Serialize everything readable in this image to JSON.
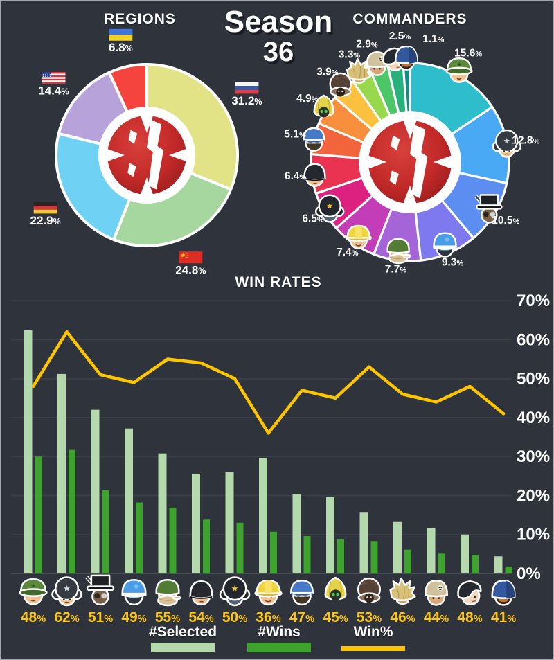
{
  "season": {
    "label": "Season",
    "number": "36"
  },
  "regions": {
    "title": "REGIONS"
  },
  "commanders": {
    "title": "COMMANDERS"
  },
  "win_rates": {
    "title": "WIN RATES"
  },
  "legend": [
    {
      "label": "#Selected",
      "color": "#b3d9ad"
    },
    {
      "label": "#Wins",
      "color": "#3da22e"
    },
    {
      "label": "Win%",
      "color": "#fdc500"
    }
  ],
  "chart_data": [
    {
      "id": "regions",
      "type": "pie",
      "title": "REGIONS",
      "center_logo": "red-army-emblem",
      "slices": [
        {
          "label": "Russia",
          "flag": "russia-flag",
          "value": 31.2,
          "color": "#e2e287"
        },
        {
          "label": "China",
          "flag": "china-flag",
          "value": 24.8,
          "color": "#a6d79f"
        },
        {
          "label": "Germany",
          "flag": "germany-flag",
          "value": 22.9,
          "color": "#6fd2f4"
        },
        {
          "label": "USA",
          "flag": "usa-flag",
          "value": 14.4,
          "color": "#b7a2da"
        },
        {
          "label": "Ukraine",
          "flag": "ukraine-flag",
          "value": 6.8,
          "color": "#f4443d"
        }
      ]
    },
    {
      "id": "commanders",
      "type": "pie",
      "title": "COMMANDERS",
      "center_logo": "red-army-emblem",
      "slices": [
        {
          "label": "green-cap-commander",
          "value": 15.6,
          "color": "#2ebdca"
        },
        {
          "label": "ushanka-star-commander",
          "value": 12.8,
          "color": "#4aa9f5"
        },
        {
          "label": "top-hat-commander",
          "value": 10.5,
          "color": "#5c8df0"
        },
        {
          "label": "blue-beret-commander",
          "value": 9.3,
          "color": "#7e79ee"
        },
        {
          "label": "green-helmet-commander",
          "value": 7.7,
          "color": "#a664d9"
        },
        {
          "label": "hard-hat-commander",
          "value": 7.4,
          "color": "#c33db6"
        },
        {
          "label": "ushanka-officer-commander",
          "value": 6.5,
          "color": "#dc2180"
        },
        {
          "label": "black-cap-commander",
          "value": 6.4,
          "color": "#e93350"
        },
        {
          "label": "blue-pilot-commander",
          "value": 5.1,
          "color": "#f2643c"
        },
        {
          "label": "yellow-hood-commander",
          "value": 4.9,
          "color": "#f78f3d"
        },
        {
          "label": "fur-hat-commander",
          "value": 3.9,
          "color": "#fcc23f"
        },
        {
          "label": "blond-hair-commander",
          "value": 3.3,
          "color": "#97d84c"
        },
        {
          "label": "skull-helmet-commander",
          "value": 2.9,
          "color": "#4dc668"
        },
        {
          "label": "black-beret-commander",
          "value": 2.5,
          "color": "#27b07b"
        },
        {
          "label": "navy-helmet-commander",
          "value": 1.1,
          "color": "#108d85"
        }
      ]
    },
    {
      "id": "win_rates",
      "type": "bar+line",
      "title": "WIN RATES",
      "categories": [
        "green-cap-commander",
        "ushanka-star-commander",
        "top-hat-commander",
        "blue-beret-commander",
        "green-helmet-commander",
        "black-cap-commander",
        "ushanka-officer-commander",
        "hard-hat-commander",
        "blue-pilot-commander",
        "yellow-hood-commander",
        "fur-hat-commander",
        "blond-hair-commander",
        "skull-helmet-commander",
        "black-beret-commander",
        "navy-helmet-commander"
      ],
      "series": [
        {
          "name": "#Selected",
          "type": "bar",
          "color": "#b3d9ad",
          "values": [
            62.4,
            51.2,
            42.0,
            37.2,
            30.8,
            25.6,
            26.0,
            29.6,
            20.4,
            19.6,
            15.6,
            13.2,
            11.6,
            10.0,
            4.4
          ]
        },
        {
          "name": "#Wins",
          "type": "bar",
          "color": "#3da22e",
          "values": [
            30.0,
            31.7,
            21.4,
            18.2,
            16.9,
            13.8,
            13.0,
            10.7,
            9.6,
            8.8,
            8.3,
            6.1,
            5.1,
            4.8,
            1.8
          ]
        },
        {
          "name": "Win%",
          "type": "line",
          "color": "#fdc500",
          "values": [
            48,
            62,
            51,
            49,
            55,
            54,
            50,
            36,
            47,
            45,
            53,
            46,
            44,
            48,
            41
          ]
        }
      ],
      "x_labels": [
        "48%",
        "62%",
        "51%",
        "49%",
        "55%",
        "54%",
        "50%",
        "36%",
        "47%",
        "45%",
        "53%",
        "46%",
        "44%",
        "48%",
        "41%"
      ],
      "ylim": [
        0,
        70
      ],
      "yticks": [
        "0%",
        "10%",
        "20%",
        "30%",
        "40%",
        "50%",
        "60%",
        "70%"
      ],
      "grid": true,
      "legend_position": "bottom"
    }
  ]
}
